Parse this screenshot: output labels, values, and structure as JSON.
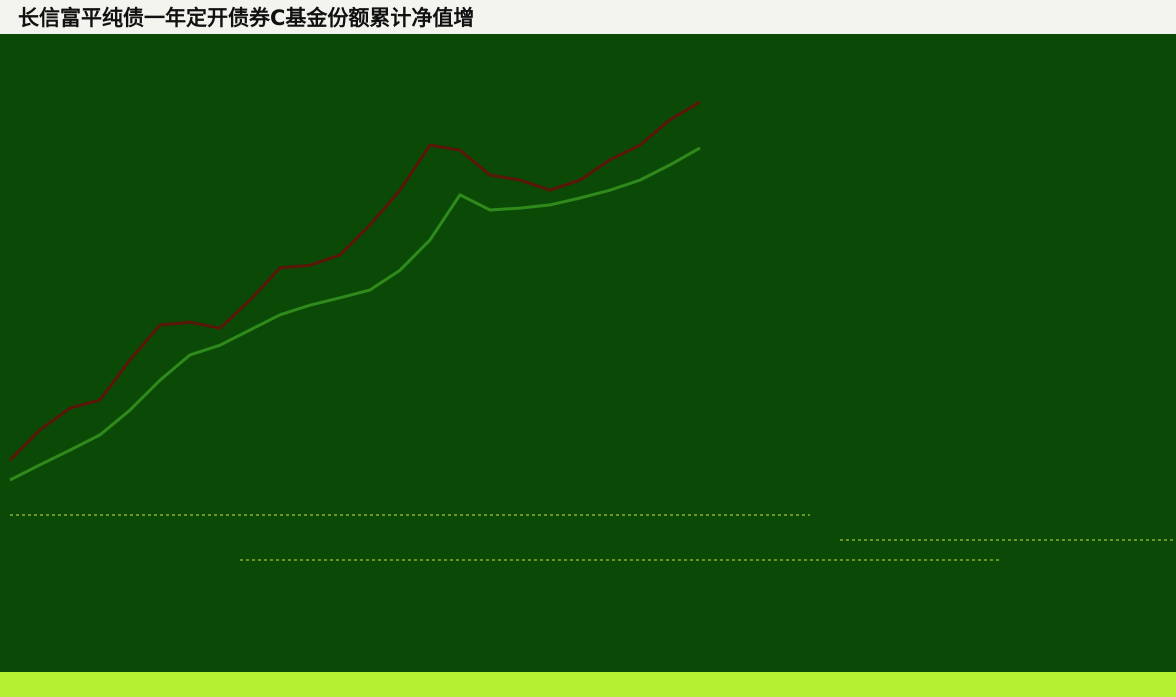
{
  "chart_data": {
    "type": "line",
    "title": "长信富平纯债一年定开债券C基金份额累计净值增",
    "ylim": [
      0,
      10
    ],
    "series": [
      {
        "color": "#5a1608",
        "values": [
          1.3,
          1.96,
          2.43,
          2.61,
          3.48,
          4.24,
          4.3,
          4.17,
          4.78,
          5.48,
          5.54,
          5.76,
          6.41,
          7.17,
          8.15,
          8.04,
          7.5,
          7.39,
          7.17,
          7.39,
          7.83,
          8.15,
          8.7,
          9.09
        ]
      },
      {
        "color": "#2f8a1c",
        "values": [
          0.87,
          1.2,
          1.52,
          1.85,
          2.39,
          3.04,
          3.59,
          3.8,
          4.13,
          4.46,
          4.67,
          4.83,
          5.0,
          5.43,
          6.09,
          7.07,
          6.74,
          6.78,
          6.85,
          7.0,
          7.17,
          7.39,
          7.72,
          8.09
        ]
      }
    ]
  }
}
